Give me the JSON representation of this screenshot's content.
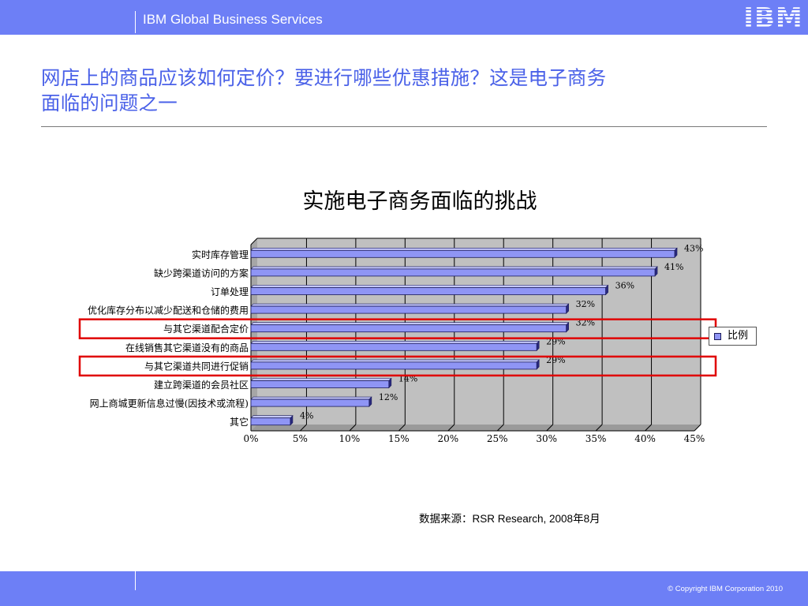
{
  "header": {
    "brand_text": "IBM Global Business Services",
    "logo_text": "IBM"
  },
  "slide": {
    "title_line1": "网店上的商品应该如何定价？要进行哪些优惠措施？这是电子商务",
    "title_line2": "面临的问题之一"
  },
  "chart_data": {
    "type": "bar",
    "orientation": "horizontal",
    "title": "实施电子商务面临的挑战",
    "categories": [
      "实时库存管理",
      "缺少跨渠道访问的方案",
      "订单处理",
      "优化库存分布以减少配送和仓储的费用",
      "与其它渠道配合定价",
      "在线销售其它渠道没有的商品",
      "与其它渠道共同进行促销",
      "建立跨渠道的会员社区",
      "网上商城更新信息过慢(因技术或流程)",
      "其它"
    ],
    "series": [
      {
        "name": "比例",
        "values": [
          43,
          41,
          36,
          32,
          32,
          29,
          29,
          14,
          12,
          4
        ],
        "labels": [
          "43%",
          "41%",
          "36%",
          "32%",
          "32%",
          "29%",
          "29%",
          "14%",
          "12%",
          "4%"
        ]
      }
    ],
    "xlim": [
      0,
      45
    ],
    "xticks": [
      "0%",
      "5%",
      "10%",
      "15%",
      "20%",
      "25%",
      "30%",
      "35%",
      "40%",
      "45%"
    ],
    "grid": true,
    "legend_position": "right",
    "highlighted_categories": [
      "与其它渠道配合定价",
      "与其它渠道共同进行促销"
    ],
    "colors": {
      "bar_front": "#8f95f5",
      "bar_top": "#c3c6fa",
      "bar_side": "#2a2a80",
      "plot_wall": "#c0c0c0",
      "highlight": "#e00000"
    }
  },
  "source_note": "数据来源：RSR Research, 2008年8月",
  "footer": {
    "copyright": "© Copyright IBM Corporation 2010"
  }
}
